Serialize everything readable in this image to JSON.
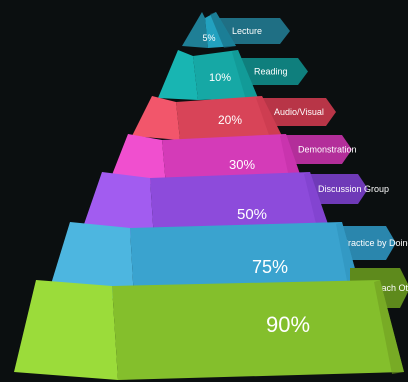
{
  "pyramid": {
    "levels": [
      {
        "percent": "5%",
        "label": "Lecture",
        "colors": {
          "left": "#1f7f96",
          "right": "#18687c",
          "front": "#22a1bf",
          "tag": "#1f6f84"
        }
      },
      {
        "percent": "10%",
        "label": "Reading",
        "colors": {
          "left": "#18b5b2",
          "right": "#119290",
          "front": "#16a8a5",
          "tag": "#0f7f7d"
        }
      },
      {
        "percent": "20%",
        "label": "Audio/Visual",
        "colors": {
          "left": "#f2566b",
          "right": "#c8394d",
          "front": "#d84458",
          "tag": "#b83547"
        }
      },
      {
        "percent": "30%",
        "label": "Demonstration",
        "colors": {
          "left": "#f04fcf",
          "right": "#c231a7",
          "front": "#d43bb8",
          "tag": "#b32e9a"
        }
      },
      {
        "percent": "50%",
        "label": "Discussion Group",
        "colors": {
          "left": "#a25cf0",
          "right": "#7d3fc9",
          "front": "#8d4bdb",
          "tag": "#6f3ab8"
        }
      },
      {
        "percent": "75%",
        "label": "Practice by Doing",
        "colors": {
          "left": "#4db6e0",
          "right": "#2f93bd",
          "front": "#3aa3cf",
          "tag": "#2a86ad"
        }
      },
      {
        "percent": "90%",
        "label": "Teach Others",
        "colors": {
          "left": "#9bdc3a",
          "right": "#6f9f22",
          "front": "#84bf2c",
          "tag": "#5e8a1c"
        }
      }
    ]
  }
}
